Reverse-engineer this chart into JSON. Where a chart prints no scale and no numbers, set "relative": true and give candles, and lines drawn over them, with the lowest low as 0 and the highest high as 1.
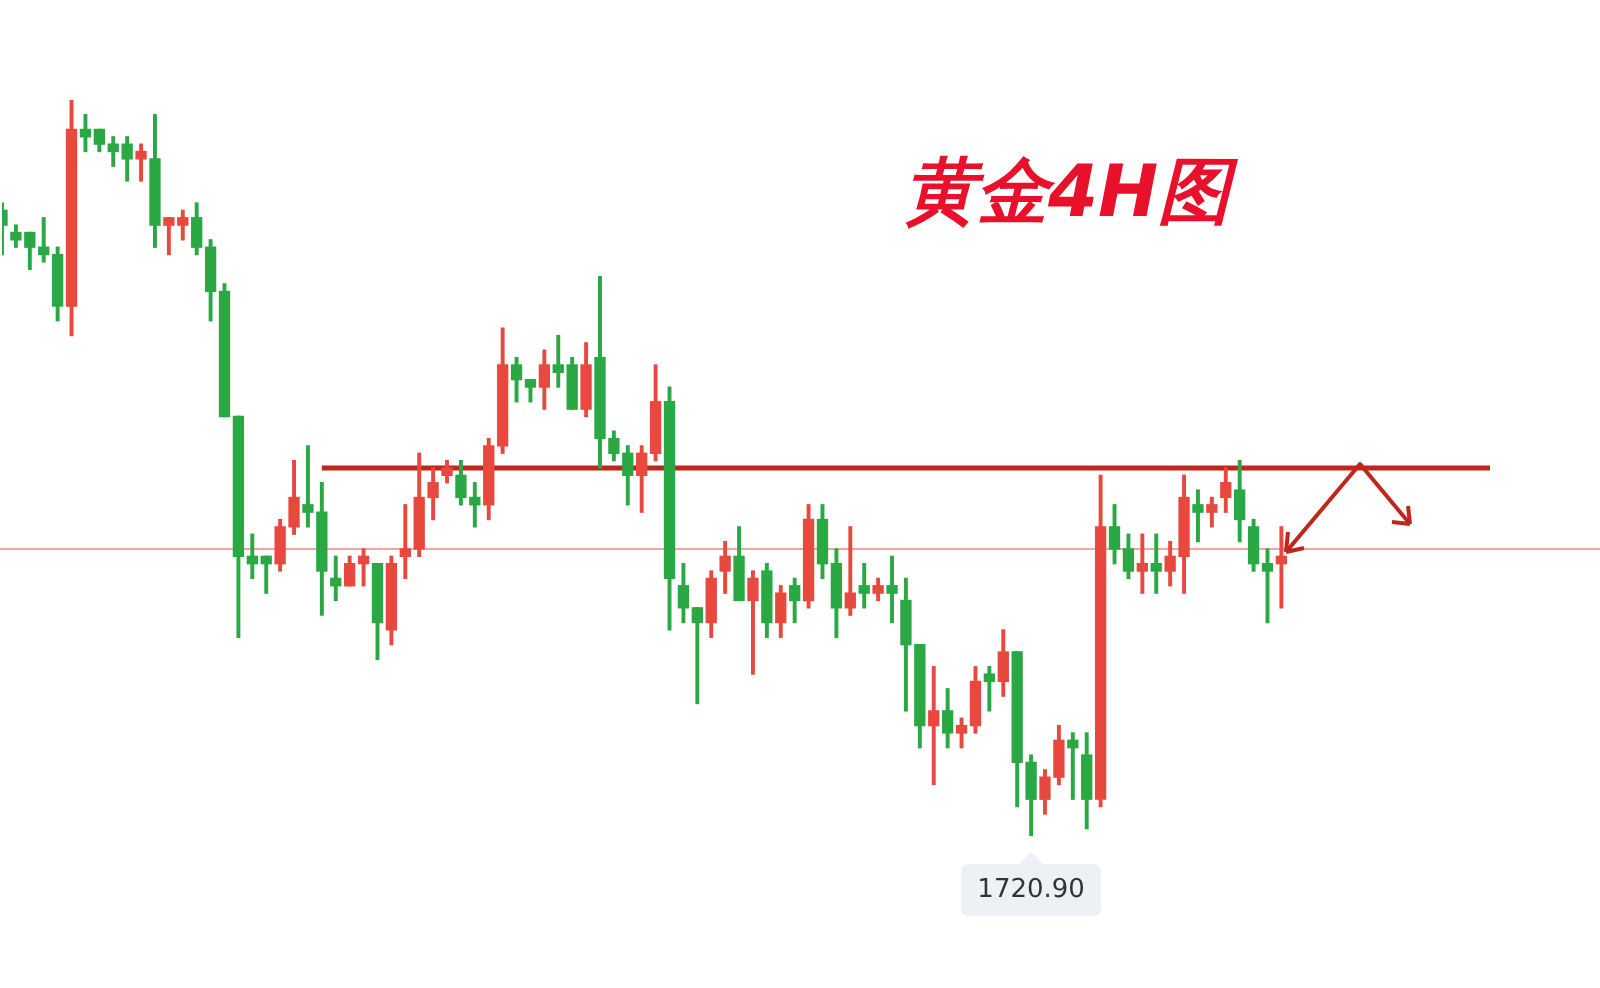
{
  "chart_data": {
    "type": "candlestick",
    "title": "黄金4H图",
    "relative": true,
    "tick_labels": false,
    "categories": [
      null,
      null,
      null,
      null,
      null,
      null,
      null,
      null,
      null,
      null,
      null,
      null,
      null,
      null,
      null,
      null,
      null,
      null,
      null,
      null,
      null,
      null,
      null,
      null,
      null,
      null,
      null,
      null,
      null,
      null,
      null,
      null,
      null,
      null,
      null,
      null,
      null,
      null,
      null,
      null,
      null,
      null,
      null,
      null,
      null,
      null,
      null,
      null,
      null,
      null,
      null,
      null,
      null,
      null,
      null,
      null,
      null,
      null,
      null,
      null,
      null,
      null,
      null,
      null,
      null,
      null,
      null,
      null,
      null,
      null,
      null,
      null,
      null,
      null,
      null,
      null,
      null,
      null,
      null,
      null,
      null,
      null,
      null,
      null,
      null,
      null,
      null,
      null,
      null,
      null,
      null,
      null,
      null,
      null,
      null,
      null,
      null,
      null,
      null,
      null,
      null,
      null,
      null,
      null,
      null,
      null,
      null,
      null
    ],
    "ohlc": [
      [
        0.85,
        0.86,
        0.79,
        0.83
      ],
      [
        0.82,
        0.83,
        0.8,
        0.81
      ],
      [
        0.82,
        0.82,
        0.77,
        0.8
      ],
      [
        0.8,
        0.84,
        0.78,
        0.79
      ],
      [
        0.79,
        0.8,
        0.7,
        0.72
      ],
      [
        0.72,
        1.0,
        0.68,
        0.96
      ],
      [
        0.96,
        0.98,
        0.93,
        0.95
      ],
      [
        0.96,
        0.96,
        0.93,
        0.94
      ],
      [
        0.94,
        0.95,
        0.91,
        0.93
      ],
      [
        0.94,
        0.95,
        0.89,
        0.92
      ],
      [
        0.92,
        0.94,
        0.89,
        0.93
      ],
      [
        0.92,
        0.98,
        0.8,
        0.83
      ],
      [
        0.83,
        0.84,
        0.79,
        0.84
      ],
      [
        0.83,
        0.85,
        0.81,
        0.84
      ],
      [
        0.84,
        0.86,
        0.79,
        0.8
      ],
      [
        0.8,
        0.81,
        0.7,
        0.74
      ],
      [
        0.74,
        0.75,
        0.57,
        0.57
      ],
      [
        0.57,
        0.57,
        0.27,
        0.38
      ],
      [
        0.38,
        0.41,
        0.35,
        0.37
      ],
      [
        0.38,
        0.38,
        0.33,
        0.37
      ],
      [
        0.37,
        0.43,
        0.36,
        0.42
      ],
      [
        0.42,
        0.51,
        0.41,
        0.46
      ],
      [
        0.45,
        0.53,
        0.42,
        0.44
      ],
      [
        0.44,
        0.48,
        0.3,
        0.36
      ],
      [
        0.35,
        0.38,
        0.32,
        0.34
      ],
      [
        0.34,
        0.38,
        0.34,
        0.37
      ],
      [
        0.37,
        0.39,
        0.34,
        0.38
      ],
      [
        0.37,
        0.37,
        0.24,
        0.29
      ],
      [
        0.28,
        0.38,
        0.26,
        0.37
      ],
      [
        0.38,
        0.45,
        0.35,
        0.39
      ],
      [
        0.39,
        0.52,
        0.38,
        0.46
      ],
      [
        0.46,
        0.5,
        0.43,
        0.48
      ],
      [
        0.49,
        0.51,
        0.48,
        0.5
      ],
      [
        0.49,
        0.51,
        0.45,
        0.46
      ],
      [
        0.46,
        0.48,
        0.42,
        0.45
      ],
      [
        0.45,
        0.54,
        0.43,
        0.53
      ],
      [
        0.53,
        0.69,
        0.52,
        0.64
      ],
      [
        0.64,
        0.65,
        0.59,
        0.62
      ],
      [
        0.62,
        0.62,
        0.59,
        0.61
      ],
      [
        0.61,
        0.66,
        0.58,
        0.64
      ],
      [
        0.64,
        0.68,
        0.61,
        0.63
      ],
      [
        0.64,
        0.65,
        0.58,
        0.58
      ],
      [
        0.58,
        0.67,
        0.57,
        0.64
      ],
      [
        0.65,
        0.76,
        0.5,
        0.54
      ],
      [
        0.54,
        0.55,
        0.51,
        0.52
      ],
      [
        0.52,
        0.53,
        0.45,
        0.49
      ],
      [
        0.49,
        0.53,
        0.44,
        0.52
      ],
      [
        0.52,
        0.64,
        0.51,
        0.59
      ],
      [
        0.59,
        0.61,
        0.28,
        0.35
      ],
      [
        0.34,
        0.37,
        0.29,
        0.31
      ],
      [
        0.31,
        0.31,
        0.18,
        0.29
      ],
      [
        0.29,
        0.36,
        0.27,
        0.35
      ],
      [
        0.36,
        0.4,
        0.33,
        0.38
      ],
      [
        0.38,
        0.42,
        0.32,
        0.32
      ],
      [
        0.32,
        0.36,
        0.22,
        0.35
      ],
      [
        0.36,
        0.37,
        0.27,
        0.29
      ],
      [
        0.29,
        0.34,
        0.27,
        0.33
      ],
      [
        0.34,
        0.35,
        0.29,
        0.32
      ],
      [
        0.32,
        0.45,
        0.31,
        0.43
      ],
      [
        0.43,
        0.45,
        0.35,
        0.37
      ],
      [
        0.37,
        0.39,
        0.27,
        0.31
      ],
      [
        0.31,
        0.42,
        0.3,
        0.33
      ],
      [
        0.34,
        0.37,
        0.31,
        0.33
      ],
      [
        0.33,
        0.35,
        0.32,
        0.34
      ],
      [
        0.34,
        0.38,
        0.29,
        0.33
      ],
      [
        0.32,
        0.35,
        0.17,
        0.26
      ],
      [
        0.26,
        0.26,
        0.12,
        0.15
      ],
      [
        0.15,
        0.23,
        0.07,
        0.17
      ],
      [
        0.17,
        0.2,
        0.12,
        0.14
      ],
      [
        0.14,
        0.16,
        0.12,
        0.15
      ],
      [
        0.15,
        0.23,
        0.14,
        0.21
      ],
      [
        0.22,
        0.23,
        0.17,
        0.21
      ],
      [
        0.21,
        0.28,
        0.19,
        0.25
      ],
      [
        0.25,
        0.25,
        0.04,
        0.1
      ],
      [
        0.1,
        0.11,
        0.0,
        0.05
      ],
      [
        0.05,
        0.09,
        0.03,
        0.08
      ],
      [
        0.08,
        0.15,
        0.07,
        0.13
      ],
      [
        0.13,
        0.14,
        0.05,
        0.12
      ],
      [
        0.11,
        0.14,
        0.01,
        0.05
      ],
      [
        0.05,
        0.49,
        0.04,
        0.42
      ],
      [
        0.42,
        0.45,
        0.37,
        0.39
      ],
      [
        0.39,
        0.41,
        0.35,
        0.36
      ],
      [
        0.36,
        0.41,
        0.33,
        0.37
      ],
      [
        0.37,
        0.41,
        0.33,
        0.36
      ],
      [
        0.36,
        0.4,
        0.34,
        0.38
      ],
      [
        0.38,
        0.49,
        0.33,
        0.46
      ],
      [
        0.45,
        0.47,
        0.4,
        0.44
      ],
      [
        0.44,
        0.46,
        0.42,
        0.45
      ],
      [
        0.46,
        0.5,
        0.44,
        0.48
      ],
      [
        0.47,
        0.51,
        0.4,
        0.43
      ],
      [
        0.42,
        0.43,
        0.36,
        0.37
      ],
      [
        0.37,
        0.39,
        0.29,
        0.36
      ],
      [
        0.37,
        0.42,
        0.31,
        0.38
      ],
      null,
      null,
      null,
      null,
      null,
      null,
      null,
      null,
      null,
      null,
      null,
      null,
      null,
      null,
      null
    ],
    "colors": [
      "#2aa844",
      "#2aa844",
      "#2aa844",
      "#2aa844",
      "#2aa844",
      "#e8493f",
      "#2aa844",
      "#2aa844",
      "#2aa844",
      "#2aa844",
      "#e8493f",
      "#2aa844",
      "#e8493f",
      "#e8493f",
      "#2aa844",
      "#2aa844",
      "#2aa844",
      "#2aa844",
      "#2aa844",
      "#2aa844",
      "#e8493f",
      "#e8493f",
      "#2aa844",
      "#2aa844",
      "#2aa844",
      "#e8493f",
      "#e8493f",
      "#2aa844",
      "#e8493f",
      "#e8493f",
      "#e8493f",
      "#e8493f",
      "#e8493f",
      "#2aa844",
      "#2aa844",
      "#e8493f",
      "#e8493f",
      "#2aa844",
      "#2aa844",
      "#e8493f",
      "#2aa844",
      "#2aa844",
      "#e8493f",
      "#2aa844",
      "#2aa844",
      "#2aa844",
      "#e8493f",
      "#e8493f",
      "#2aa844",
      "#2aa844",
      "#2aa844",
      "#e8493f",
      "#e8493f",
      "#2aa844",
      "#e8493f",
      "#2aa844",
      "#e8493f",
      "#2aa844",
      "#e8493f",
      "#2aa844",
      "#2aa844",
      "#e8493f",
      "#2aa844",
      "#e8493f",
      "#2aa844",
      "#2aa844",
      "#2aa844",
      "#e8493f",
      "#2aa844",
      "#e8493f",
      "#e8493f",
      "#2aa844",
      "#e8493f",
      "#2aa844",
      "#2aa844",
      "#e8493f",
      "#e8493f",
      "#2aa844",
      "#2aa844",
      "#e8493f",
      "#2aa844",
      "#2aa844",
      "#e8493f",
      "#2aa844",
      "#e8493f",
      "#e8493f",
      "#2aa844",
      "#e8493f",
      "#e8493f",
      "#2aa844",
      "#2aa844",
      "#2aa844",
      "#e8493f",
      null,
      null,
      null,
      null,
      null,
      null,
      null,
      null,
      null,
      null,
      null,
      null,
      null,
      null,
      null
    ],
    "series": [
      {
        "type": "line",
        "color": "#c0261c",
        "values": [
          null,
          null,
          null,
          null,
          null,
          null,
          null,
          null,
          null,
          null,
          null,
          null,
          null,
          null,
          null,
          null,
          null,
          null,
          null,
          null,
          null,
          null,
          null,
          0.5,
          0.5,
          0.5,
          0.5,
          0.5,
          0.5,
          0.5,
          0.5,
          0.5,
          0.5,
          0.5,
          0.5,
          0.5,
          0.5,
          0.5,
          0.5,
          0.5,
          0.5,
          0.5,
          0.5,
          0.5,
          0.5,
          0.5,
          0.5,
          0.5,
          0.5,
          0.5,
          0.5,
          0.5,
          0.5,
          0.5,
          0.5,
          0.5,
          0.5,
          0.5,
          0.5,
          0.5,
          0.5,
          0.5,
          0.5,
          0.5,
          0.5,
          0.5,
          0.5,
          0.5,
          0.5,
          0.5,
          0.5,
          0.5,
          0.5,
          0.5,
          0.5,
          0.5,
          0.5,
          0.5,
          0.5,
          0.5,
          0.5,
          0.5,
          0.5,
          0.5,
          0.5,
          0.5,
          0.5,
          0.5,
          0.5,
          0.5,
          0.5,
          0.5,
          0.5,
          0.5,
          0.5,
          0.5,
          0.5,
          0.5,
          0.5,
          0.5,
          0.5,
          0.5,
          0.5,
          0.5,
          0.5,
          0.5,
          0.5,
          0.5
        ]
      }
    ],
    "ref_lines": [
      {
        "axis": "y",
        "value": 0.39,
        "color": "#f5a3a3"
      }
    ],
    "annotations": [
      "1720.90"
    ]
  }
}
